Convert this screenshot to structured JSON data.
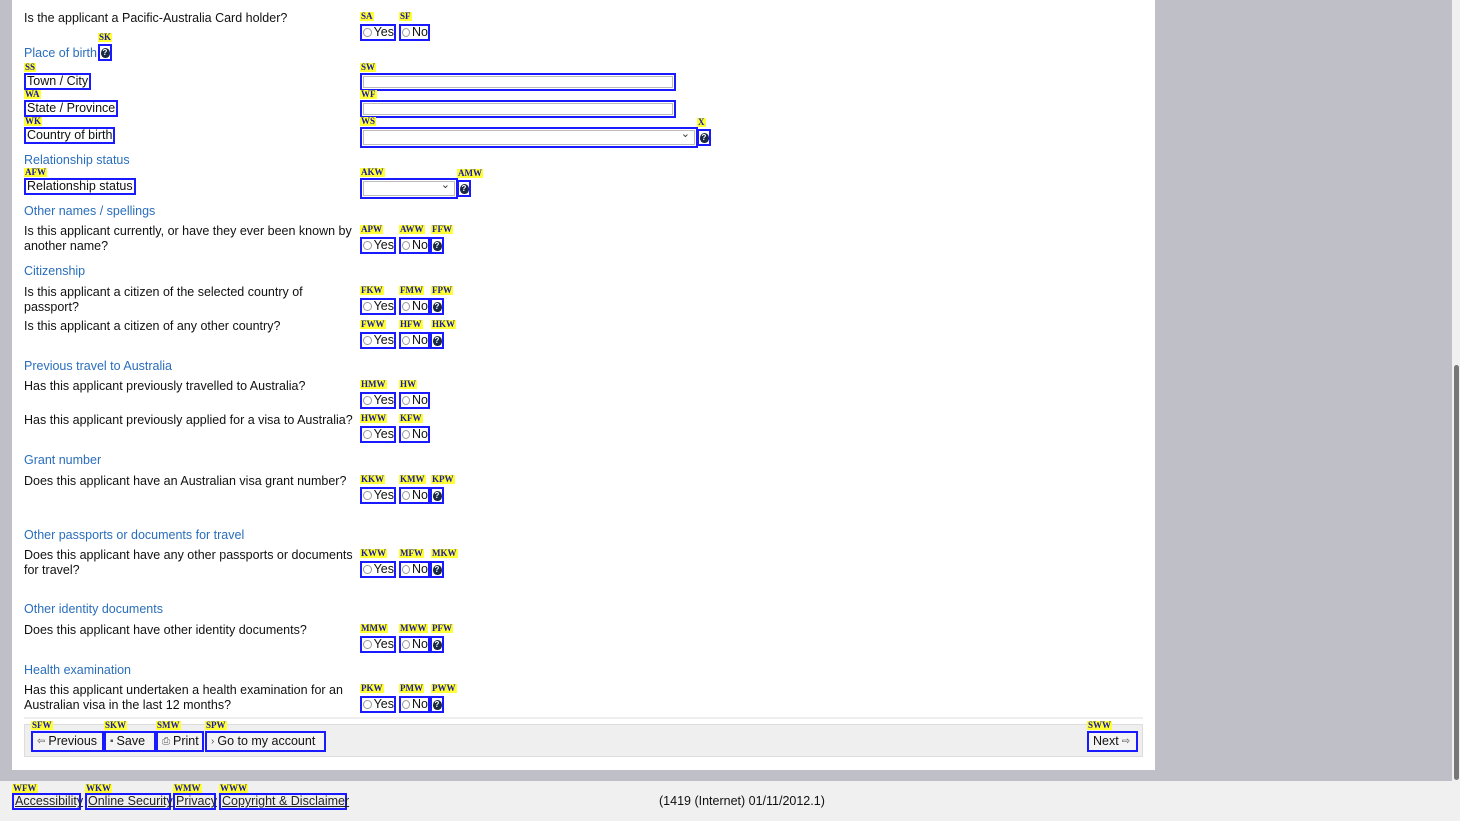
{
  "form": {
    "pacific_question": {
      "text": "Is the applicant a Pacific-Australia Card holder?",
      "yes": {
        "label": "Yes",
        "hint": "SA"
      },
      "no": {
        "label": "No",
        "hint": "SF"
      }
    },
    "place_of_birth": {
      "heading": "Place of birth",
      "help_hint": "SK",
      "fields": [
        {
          "label": "Town / City",
          "label_hint": "SS",
          "input_hint": "SW",
          "value": ""
        },
        {
          "label": "State / Province",
          "label_hint": "WA",
          "input_hint": "WF",
          "value": ""
        },
        {
          "label": "Country of birth",
          "label_hint": "WK",
          "input_hint": "WS",
          "value": "",
          "help_hint": "X"
        }
      ]
    },
    "relationship": {
      "heading": "Relationship status",
      "label": "Relationship status",
      "label_hint": "AFW",
      "select_hint": "AKW",
      "help_hint": "AMW",
      "value": ""
    },
    "sections": [
      {
        "heading": "Other names / spellings",
        "questions": [
          {
            "text": "Is this applicant currently, or have they ever been known by another name?",
            "hints": [
              "APW",
              "AWW",
              "FFW"
            ]
          }
        ]
      },
      {
        "heading": "Citizenship",
        "questions": [
          {
            "text": "Is this applicant a citizen of the selected country of passport?",
            "hints": [
              "FKW",
              "FMW",
              "FPW"
            ]
          },
          {
            "text": "Is this applicant a citizen of any other country?",
            "hints": [
              "FWW",
              "HFW",
              "HKW"
            ]
          }
        ]
      },
      {
        "heading": "Previous travel to Australia",
        "questions": [
          {
            "text": "Has this applicant previously travelled to Australia?",
            "hints": [
              "HMW",
              "HW"
            ]
          },
          {
            "text": "Has this applicant previously applied for a visa to Australia?",
            "hints": [
              "HWW",
              "KFW"
            ]
          }
        ]
      },
      {
        "heading": "Grant number",
        "questions": [
          {
            "text": "Does this applicant have an Australian visa grant number?",
            "hints": [
              "KKW",
              "KMW",
              "KPW"
            ]
          }
        ]
      },
      {
        "heading": "Other passports or documents for travel",
        "questions": [
          {
            "text": "Does this applicant have any other passports or documents for travel?",
            "hints": [
              "KWW",
              "MFW",
              "MKW"
            ]
          }
        ]
      },
      {
        "heading": "Other identity documents",
        "questions": [
          {
            "text": "Does this applicant have other identity documents?",
            "hints": [
              "MMW",
              "MWW",
              "PFW"
            ]
          }
        ]
      },
      {
        "heading": "Health examination",
        "questions": [
          {
            "text": "Has this applicant undertaken a health examination for an Australian visa in the last 12 months?",
            "hints": [
              "PKW",
              "PMW",
              "PWW"
            ]
          }
        ]
      }
    ],
    "yes_label": "Yes",
    "no_label": "No"
  },
  "buttons": {
    "previous": {
      "label": "Previous",
      "hint": "SFW",
      "icon": "arrow-left-icon"
    },
    "save": {
      "label": "Save",
      "hint": "SKW",
      "icon": "floppy-icon"
    },
    "print": {
      "label": "Print",
      "hint": "SMW",
      "icon": "printer-icon"
    },
    "account": {
      "label": "Go to my account",
      "hint": "SPW",
      "icon": "chevron-right-icon"
    },
    "next": {
      "label": "Next",
      "hint": "SWW",
      "icon": "arrow-right-icon"
    }
  },
  "footer": {
    "links": [
      {
        "label": "Accessibility",
        "hint": "WFW"
      },
      {
        "label": "Online Security",
        "hint": "WKW"
      },
      {
        "label": "Privacy",
        "hint": "WMW"
      },
      {
        "label": "Copyright & Disclaimer",
        "hint": "WWW"
      }
    ],
    "version": "(1419 (Internet) 01/11/2012.1)"
  }
}
